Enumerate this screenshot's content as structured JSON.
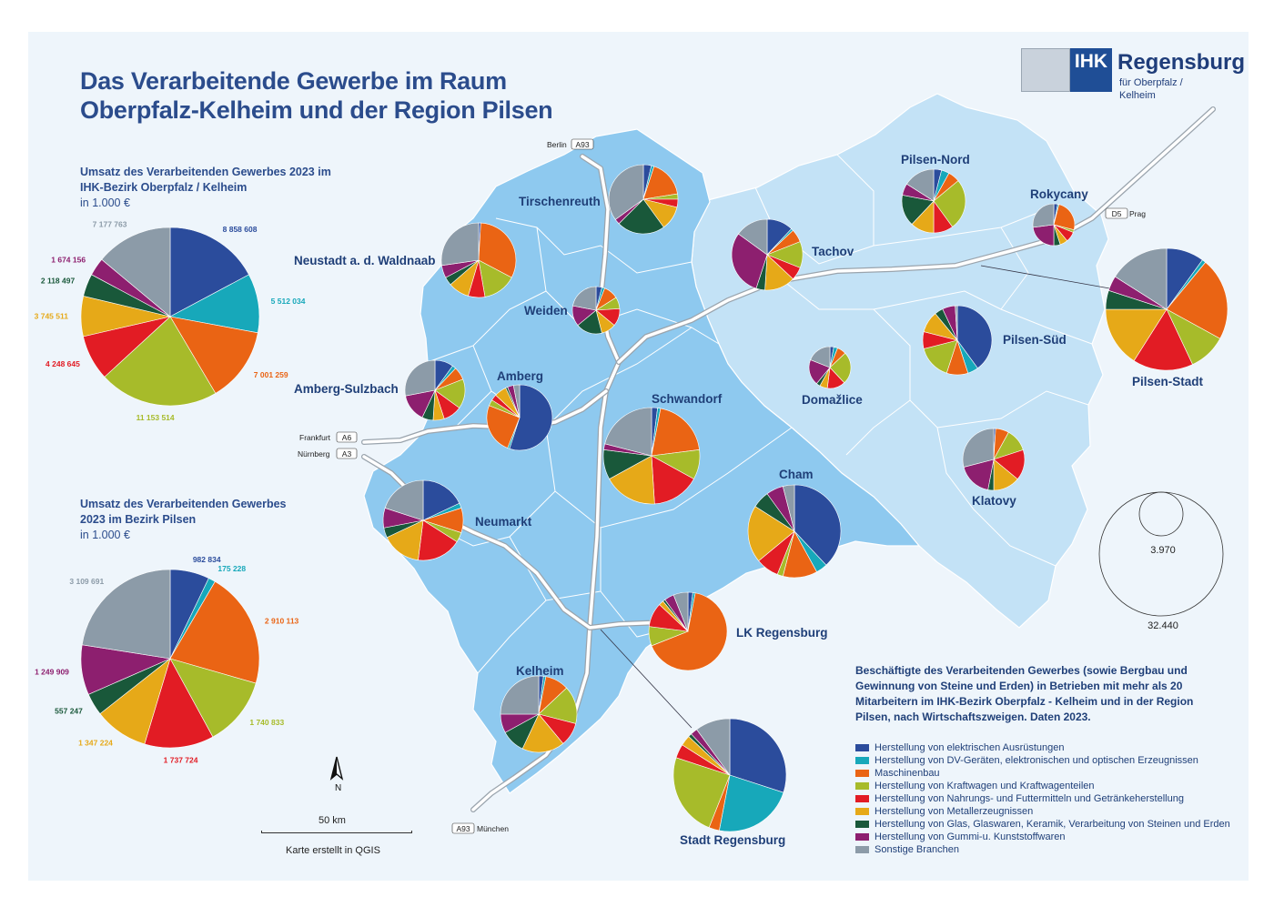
{
  "title": {
    "line1": "Das Verarbeitende Gewerbe im Raum",
    "line2": "Oberpfalz-Kelheim und der Region Pilsen"
  },
  "logo": {
    "ihk": "IHK",
    "name": "Regensburg",
    "subtitle": "für Oberpfalz / Kelheim"
  },
  "colors": {
    "electrical": "#2b4c9c",
    "dv": "#17a8ba",
    "machinery": "#ea6414",
    "vehicles": "#a7bb2a",
    "food": "#e21c24",
    "metal": "#e6a918",
    "glass": "#19583a",
    "rubber": "#8d1f6f",
    "other": "#8c9ba8"
  },
  "legend": {
    "heading": "Beschäftigte des Verarbeitenden Gewerbes (sowie Bergbau und Gewinnung von Steine und Erden) in Betrieben mit mehr als 20 Mitarbeitern im IHK-Bezirk Oberpfalz - Kelheim und in der Region Pilsen, nach Wirtschaftszweigen. Daten 2023.",
    "items": [
      {
        "key": "electrical",
        "label": "Herstellung von elektrischen Ausrüstungen",
        "color": "#2b4c9c"
      },
      {
        "key": "dv",
        "label": "Herstellung von DV-Geräten, elektronischen und optischen Erzeugnissen",
        "color": "#17a8ba"
      },
      {
        "key": "machinery",
        "label": "Maschinenbau",
        "color": "#ea6414"
      },
      {
        "key": "vehicles",
        "label": "Herstellung von Kraftwagen und Kraftwagenteilen",
        "color": "#a7bb2a"
      },
      {
        "key": "food",
        "label": "Herstellung von Nahrungs- und Futtermitteln und Getränkeherstellung",
        "color": "#e21c24"
      },
      {
        "key": "metal",
        "label": "Herstellung von Metallerzeugnissen",
        "color": "#e6a918"
      },
      {
        "key": "glass",
        "label": "Herstellung von Glas, Glaswaren, Keramik, Verarbeitung von Steinen und Erden",
        "color": "#19583a"
      },
      {
        "key": "rubber",
        "label": "Herstellung von Gummi-u. Kunststoffwaren",
        "color": "#8d1f6f"
      },
      {
        "key": "other",
        "label": "Sonstige Branchen",
        "color": "#8c9ba8"
      }
    ]
  },
  "size_legend": {
    "small": "3.970",
    "large": "32.440"
  },
  "scale": {
    "label": "50 km",
    "credit": "Karte erstellt in QGIS",
    "north": "N"
  },
  "chart_data": [
    {
      "type": "pie",
      "title": "Umsatz des Verarbeitenden Gewerbes 2023 im IHK-Bezirk Oberpfalz / Kelheim",
      "unit": "in 1.000 €",
      "categories": [
        "electrical",
        "dv",
        "machinery",
        "vehicles",
        "food",
        "metal",
        "glass",
        "rubber",
        "other"
      ],
      "values": [
        8858608,
        5512034,
        7001259,
        11153514,
        4248645,
        3745511,
        2118497,
        1674156,
        7177763
      ],
      "labels": [
        "8 858 608",
        "5 512 034",
        "7 001 259",
        "11 153 514",
        "4 248 645",
        "3 745 511",
        "2 118 497",
        "1 674 156",
        "7 177 763"
      ]
    },
    {
      "type": "pie",
      "title": "Umsatz des Verarbeitenden Gewerbes 2023 im Bezirk Pilsen",
      "unit": "in 1.000 €",
      "categories": [
        "electrical",
        "dv",
        "machinery",
        "vehicles",
        "food",
        "metal",
        "glass",
        "rubber",
        "other"
      ],
      "values": [
        982834,
        175228,
        2910113,
        1740833,
        1737724,
        1347224,
        557247,
        1249909,
        3109691
      ],
      "labels": [
        "982 834",
        "175 228",
        "2 910 113",
        "1 740 833",
        "1 737 724",
        "1 347 224",
        "557 247",
        "1 249 909",
        "3 109 691"
      ]
    }
  ],
  "regions": [
    {
      "name": "Tirschenreuth",
      "v": [
        3,
        1,
        14,
        2,
        3,
        9,
        18,
        2,
        28
      ]
    },
    {
      "name": "Neustadt a. d. Waldnaab",
      "v": [
        1,
        0,
        35,
        16,
        8,
        10,
        4,
        6,
        30
      ]
    },
    {
      "name": "Weiden",
      "v": [
        4,
        2,
        10,
        8,
        12,
        10,
        18,
        14,
        22
      ]
    },
    {
      "name": "Amberg-Sulzbach",
      "v": [
        10,
        2,
        7,
        16,
        10,
        6,
        6,
        15,
        28
      ]
    },
    {
      "name": "Amberg",
      "v": [
        55,
        1,
        25,
        3,
        3,
        6,
        1,
        3,
        3
      ]
    },
    {
      "name": "Schwandorf",
      "v": [
        2,
        1,
        20,
        10,
        16,
        18,
        10,
        2,
        21
      ]
    },
    {
      "name": "Neumarkt",
      "v": [
        18,
        2,
        10,
        4,
        18,
        16,
        4,
        8,
        20
      ]
    },
    {
      "name": "Cham",
      "v": [
        38,
        4,
        12,
        2,
        8,
        20,
        6,
        6,
        4
      ]
    },
    {
      "name": "LK Regensburg",
      "v": [
        2,
        1,
        66,
        8,
        10,
        2,
        1,
        4,
        6
      ]
    },
    {
      "name": "Kelheim",
      "v": [
        2,
        1,
        10,
        16,
        10,
        18,
        10,
        8,
        25
      ]
    },
    {
      "name": "Stadt Regensburg",
      "v": [
        30,
        23,
        3,
        24,
        4,
        3,
        1,
        2,
        10
      ]
    },
    {
      "name": "Tachov",
      "v": [
        12,
        1,
        6,
        12,
        6,
        14,
        4,
        30,
        15
      ]
    },
    {
      "name": "Pilsen-Nord",
      "v": [
        4,
        4,
        6,
        26,
        10,
        12,
        16,
        6,
        16
      ]
    },
    {
      "name": "Rokycany",
      "v": [
        3,
        1,
        25,
        2,
        8,
        6,
        5,
        23,
        27
      ]
    },
    {
      "name": "Pilsen-Stadt",
      "v": [
        10,
        1,
        22,
        10,
        16,
        16,
        5,
        4,
        16
      ]
    },
    {
      "name": "Pilsen-Süd",
      "v": [
        40,
        5,
        10,
        16,
        8,
        10,
        4,
        6,
        1
      ]
    },
    {
      "name": "Domažlice",
      "v": [
        3,
        3,
        7,
        25,
        14,
        6,
        3,
        20,
        19
      ]
    },
    {
      "name": "Klatovy",
      "v": [
        1,
        0,
        7,
        12,
        16,
        14,
        3,
        18,
        29
      ]
    }
  ],
  "roads": {
    "a93n": "A93",
    "berlin": "Berlin",
    "d5": "D5",
    "prag": "Prag",
    "a6": "A6",
    "frankfurt": "Frankfurt",
    "a3": "A3",
    "nuernberg": "Nürnberg",
    "a93s": "A93",
    "muenchen": "München"
  }
}
